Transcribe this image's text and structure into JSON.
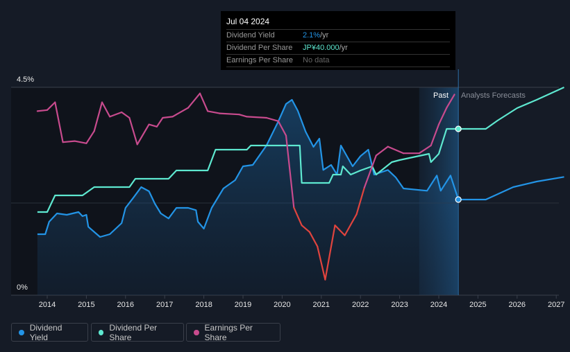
{
  "tooltip": {
    "date": "Jul 04 2024",
    "rows": [
      {
        "label": "Dividend Yield",
        "value": "2.1%",
        "unit": " /yr",
        "color": "#2394e6"
      },
      {
        "label": "Dividend Per Share",
        "value": "JP¥40.000",
        "unit": " /yr",
        "color": "#5ee8d0"
      },
      {
        "label": "Earnings Per Share",
        "value": "No data",
        "unit": "",
        "color": "#777777"
      }
    ]
  },
  "labels": {
    "past": "Past",
    "forecast": "Analysts Forecasts"
  },
  "legend": [
    {
      "label": "Dividend Yield",
      "color": "#2394e6"
    },
    {
      "label": "Dividend Per Share",
      "color": "#5ee8d0"
    },
    {
      "label": "Earnings Per Share",
      "color": "#c84b8e"
    }
  ],
  "chart_data": {
    "type": "line",
    "x_ticks": [
      "2014",
      "2015",
      "2016",
      "2017",
      "2018",
      "2019",
      "2020",
      "2021",
      "2022",
      "2023",
      "2024",
      "2025",
      "2026",
      "2027"
    ],
    "y_tick_labels": [
      "4.5%",
      "0%"
    ],
    "ylim": [
      0,
      4.5
    ],
    "xlim": [
      2013.5,
      2027.1
    ],
    "past_end": 2024.5,
    "forecast_band_start": 2023.5,
    "series": [
      {
        "name": "Dividend Yield",
        "unit": "%",
        "color": "#2394e6",
        "points": [
          [
            2013.75,
            1.32
          ],
          [
            2013.95,
            1.32
          ],
          [
            2014.05,
            1.59
          ],
          [
            2014.25,
            1.77
          ],
          [
            2014.5,
            1.74
          ],
          [
            2014.8,
            1.8
          ],
          [
            2014.9,
            1.71
          ],
          [
            2015.0,
            1.74
          ],
          [
            2015.05,
            1.48
          ],
          [
            2015.35,
            1.26
          ],
          [
            2015.6,
            1.32
          ],
          [
            2015.9,
            1.56
          ],
          [
            2016.0,
            1.89
          ],
          [
            2016.2,
            2.11
          ],
          [
            2016.4,
            2.34
          ],
          [
            2016.6,
            2.25
          ],
          [
            2016.75,
            1.98
          ],
          [
            2016.9,
            1.77
          ],
          [
            2017.1,
            1.66
          ],
          [
            2017.3,
            1.89
          ],
          [
            2017.6,
            1.89
          ],
          [
            2017.8,
            1.84
          ],
          [
            2017.85,
            1.59
          ],
          [
            2018.0,
            1.44
          ],
          [
            2018.2,
            1.89
          ],
          [
            2018.5,
            2.31
          ],
          [
            2018.8,
            2.49
          ],
          [
            2019.0,
            2.79
          ],
          [
            2019.25,
            2.82
          ],
          [
            2019.6,
            3.24
          ],
          [
            2019.9,
            3.76
          ],
          [
            2020.1,
            4.14
          ],
          [
            2020.25,
            4.23
          ],
          [
            2020.4,
            3.99
          ],
          [
            2020.6,
            3.54
          ],
          [
            2020.8,
            3.21
          ],
          [
            2020.95,
            3.39
          ],
          [
            2021.05,
            2.71
          ],
          [
            2021.25,
            2.82
          ],
          [
            2021.4,
            2.61
          ],
          [
            2021.5,
            3.24
          ],
          [
            2021.8,
            2.79
          ],
          [
            2022.0,
            3.01
          ],
          [
            2022.2,
            3.15
          ],
          [
            2022.35,
            2.61
          ],
          [
            2022.7,
            2.71
          ],
          [
            2022.9,
            2.55
          ],
          [
            2023.1,
            2.31
          ],
          [
            2023.7,
            2.26
          ],
          [
            2023.95,
            2.59
          ],
          [
            2024.05,
            2.26
          ],
          [
            2024.3,
            2.59
          ],
          [
            2024.5,
            2.07
          ],
          [
            2025.2,
            2.07
          ],
          [
            2025.9,
            2.34
          ],
          [
            2026.5,
            2.46
          ],
          [
            2027.2,
            2.56
          ]
        ]
      },
      {
        "name": "Dividend Per Share",
        "unit": "JPY",
        "color": "#5ee8d0",
        "points": [
          [
            2013.75,
            20
          ],
          [
            2014.0,
            20
          ],
          [
            2014.2,
            24
          ],
          [
            2014.9,
            24
          ],
          [
            2015.2,
            26
          ],
          [
            2016.1,
            26
          ],
          [
            2016.25,
            28
          ],
          [
            2017.1,
            28
          ],
          [
            2017.3,
            30
          ],
          [
            2018.1,
            30
          ],
          [
            2018.3,
            35
          ],
          [
            2019.1,
            35
          ],
          [
            2019.2,
            36
          ],
          [
            2020.45,
            36
          ],
          [
            2020.5,
            27
          ],
          [
            2021.2,
            27
          ],
          [
            2021.3,
            29
          ],
          [
            2021.5,
            29
          ],
          [
            2021.55,
            31
          ],
          [
            2021.75,
            29
          ],
          [
            2022.0,
            30
          ],
          [
            2022.3,
            31
          ],
          [
            2022.4,
            29
          ],
          [
            2022.8,
            32
          ],
          [
            2023.0,
            32.5
          ],
          [
            2023.75,
            34
          ],
          [
            2023.8,
            32
          ],
          [
            2024.0,
            34
          ],
          [
            2024.2,
            40
          ],
          [
            2024.5,
            40
          ],
          [
            2025.2,
            40
          ],
          [
            2025.5,
            42
          ],
          [
            2026.0,
            45
          ],
          [
            2026.5,
            47
          ],
          [
            2027.2,
            50
          ]
        ]
      },
      {
        "name": "Earnings Per Share",
        "unit": "JPY",
        "color": "#c84b8e",
        "low_color": "#e0443e",
        "points": [
          [
            2013.75,
            166
          ],
          [
            2014.0,
            167
          ],
          [
            2014.2,
            174
          ],
          [
            2014.4,
            138
          ],
          [
            2014.7,
            139
          ],
          [
            2015.0,
            137
          ],
          [
            2015.2,
            148
          ],
          [
            2015.4,
            174
          ],
          [
            2015.6,
            161
          ],
          [
            2015.9,
            165
          ],
          [
            2016.1,
            160
          ],
          [
            2016.3,
            136
          ],
          [
            2016.6,
            154
          ],
          [
            2016.8,
            152
          ],
          [
            2016.95,
            160
          ],
          [
            2017.2,
            161
          ],
          [
            2017.6,
            169
          ],
          [
            2017.9,
            182
          ],
          [
            2018.1,
            166
          ],
          [
            2018.4,
            164
          ],
          [
            2018.9,
            163
          ],
          [
            2019.1,
            161
          ],
          [
            2019.6,
            160
          ],
          [
            2019.9,
            157
          ],
          [
            2020.1,
            144
          ],
          [
            2020.3,
            79
          ],
          [
            2020.5,
            63
          ],
          [
            2020.7,
            57
          ],
          [
            2020.9,
            44
          ],
          [
            2021.1,
            14
          ],
          [
            2021.35,
            63
          ],
          [
            2021.6,
            54
          ],
          [
            2021.9,
            73
          ],
          [
            2022.1,
            97
          ],
          [
            2022.4,
            126
          ],
          [
            2022.7,
            134
          ],
          [
            2023.1,
            128
          ],
          [
            2023.5,
            128
          ],
          [
            2023.8,
            135
          ],
          [
            2024.0,
            154
          ],
          [
            2024.2,
            169
          ],
          [
            2024.4,
            181
          ]
        ]
      }
    ]
  }
}
